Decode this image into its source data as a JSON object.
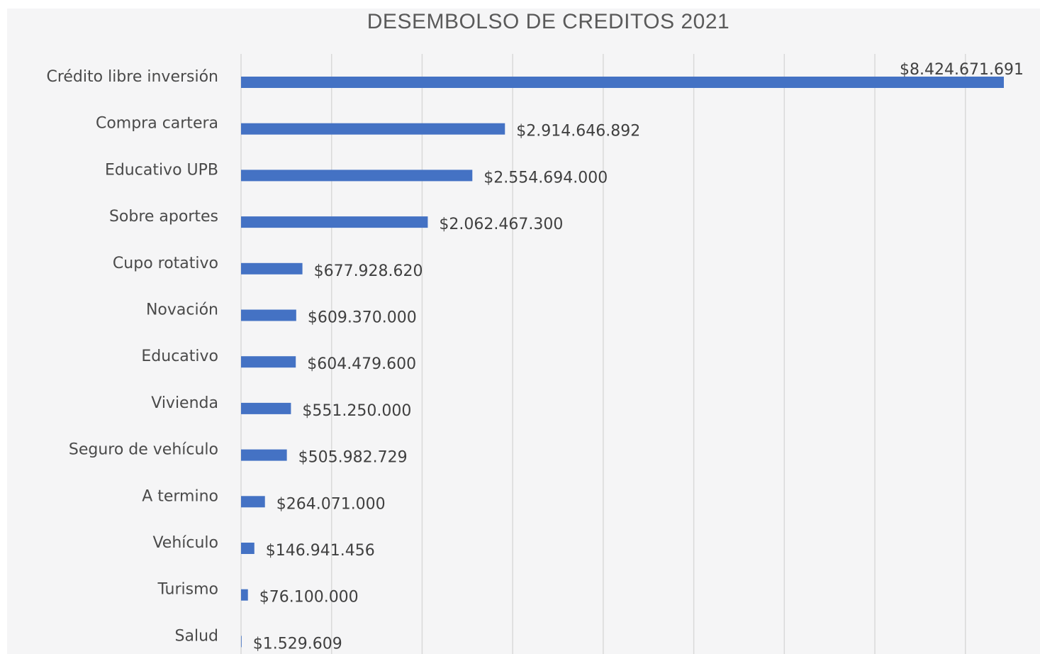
{
  "chart_data": {
    "type": "bar",
    "orientation": "horizontal",
    "title": "DESEMBOLSO DE CREDITOS 2021",
    "categories": [
      "Crédito libre inversión",
      "Compra cartera",
      "Educativo UPB",
      "Sobre aportes",
      "Cupo rotativo",
      "Novación",
      "Educativo",
      "Vivienda",
      "Seguro de vehículo",
      "A termino",
      "Vehículo",
      "Turismo",
      "Salud"
    ],
    "values": [
      8424671691,
      2914646892,
      2554694000,
      2062467300,
      677928620,
      609370000,
      604479600,
      551250000,
      505982729,
      264071000,
      146941456,
      76100000,
      1529609
    ],
    "data_labels": [
      "$8.424.671.691",
      "$2.914.646.892",
      "$2.554.694.000",
      "$2.062.467.300",
      "$677.928.620",
      "$609.370.000",
      "$604.479.600",
      "$551.250.000",
      "$505.982.729",
      "$264.071.000",
      "$146.941.456",
      "$76.100.000",
      "$1.529.609"
    ],
    "xlim": [
      0,
      9000000000
    ],
    "grid": true,
    "bar_color": "#4472c4",
    "gridline_color": "#d9d9d9",
    "legend": "none"
  }
}
